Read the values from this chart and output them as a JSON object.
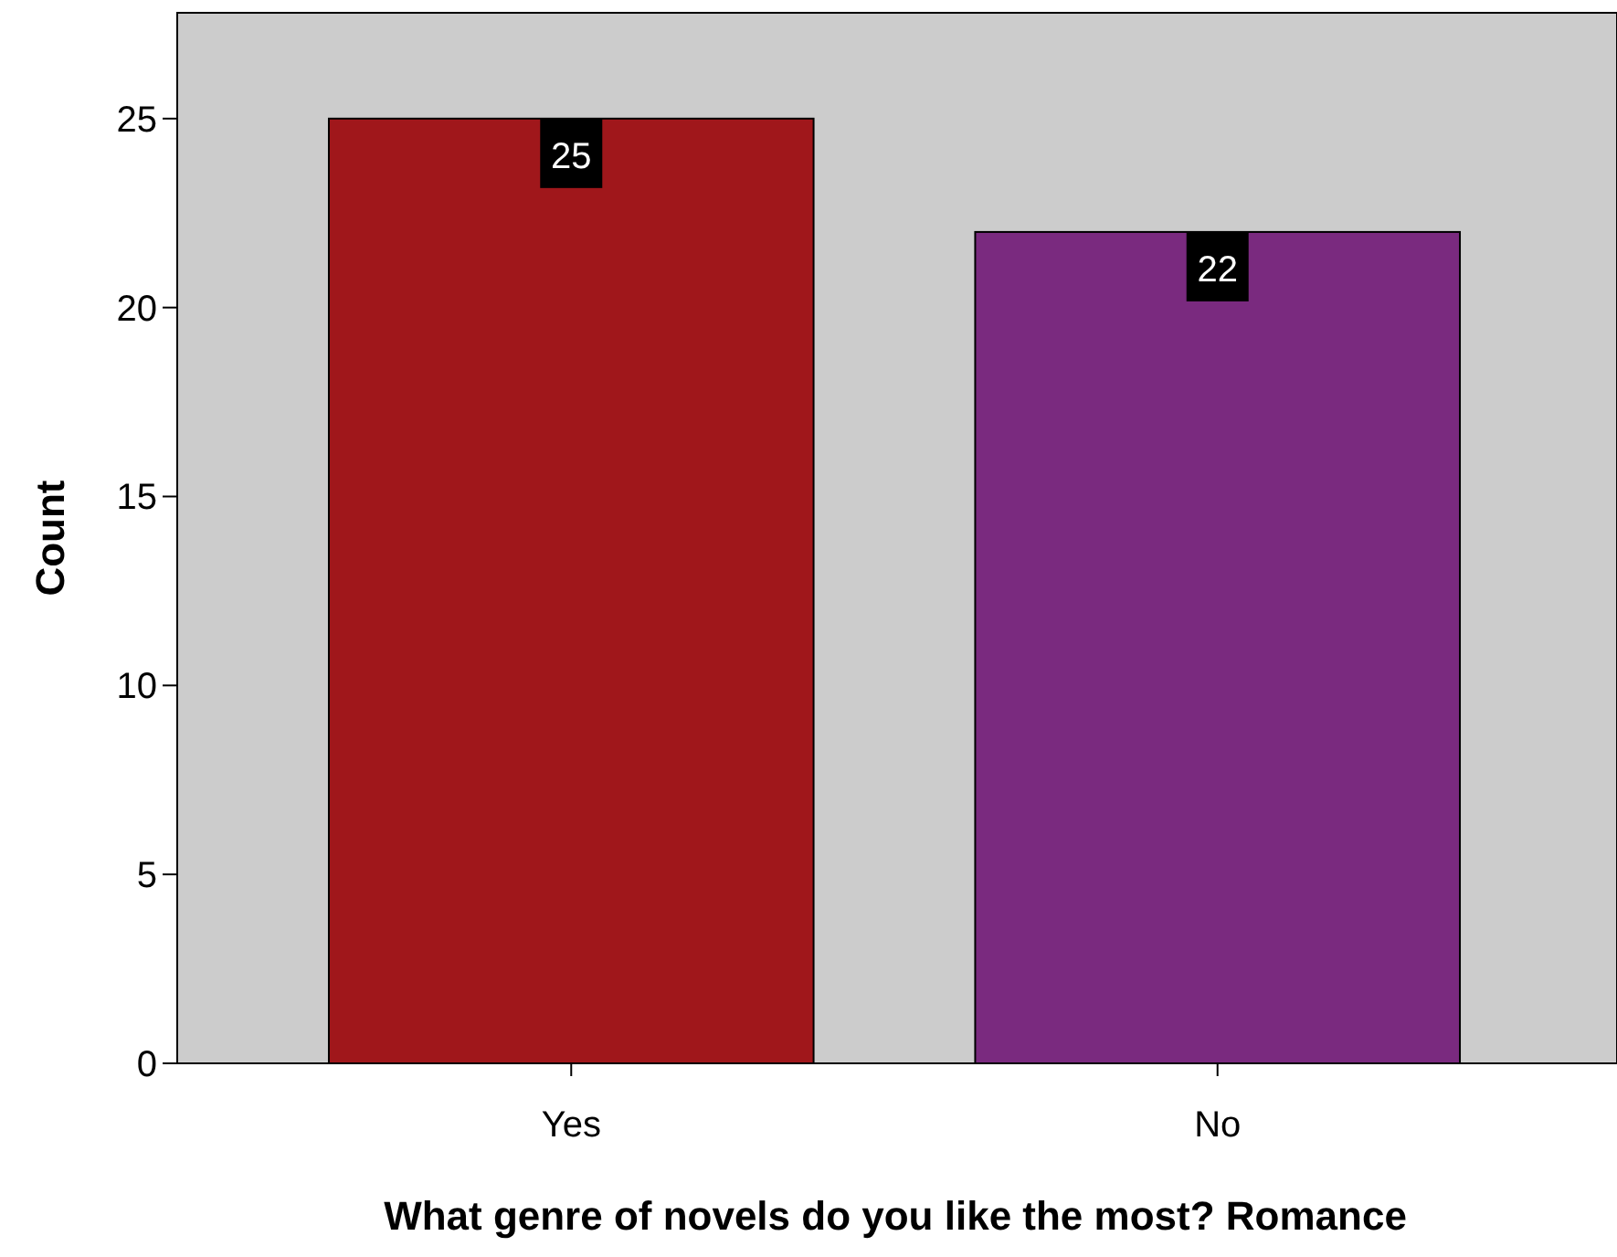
{
  "chart_data": {
    "type": "bar",
    "xlabel": "What genre of novels do you like the most? Romance",
    "ylabel": "Count",
    "categories": [
      "Yes",
      "No"
    ],
    "values": [
      25,
      22
    ],
    "colors": [
      "#a0171b",
      "#7a2a7f"
    ],
    "ylim": [
      0,
      27.8
    ],
    "yticks": [
      0,
      5,
      10,
      15,
      20,
      25
    ],
    "data_labels": true
  }
}
